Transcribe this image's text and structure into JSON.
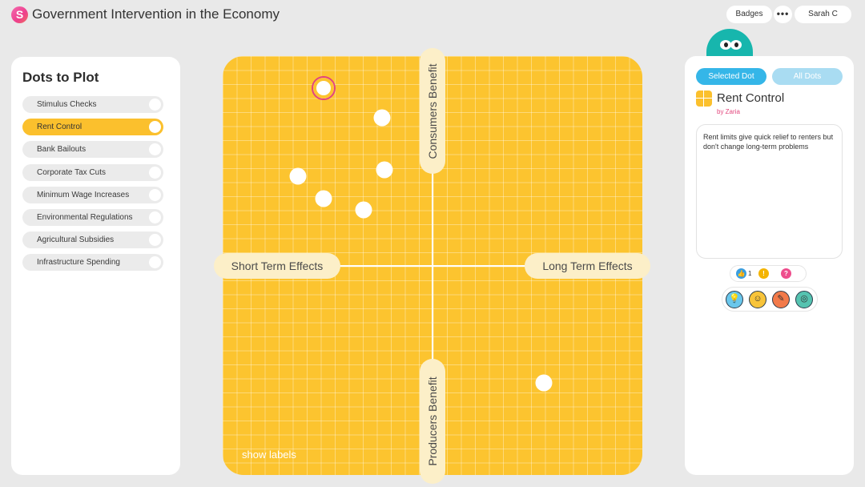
{
  "header": {
    "logo_letter": "S",
    "title": "Government Intervention in the Economy",
    "badges_label": "Badges",
    "more_label": "•••",
    "user_name": "Sarah C"
  },
  "left_panel": {
    "title": "Dots to Plot",
    "items": [
      {
        "label": "Stimulus Checks",
        "active": false
      },
      {
        "label": "Rent Control",
        "active": true
      },
      {
        "label": "Bank Bailouts",
        "active": false
      },
      {
        "label": "Corporate Tax Cuts",
        "active": false
      },
      {
        "label": "Minimum Wage Increases",
        "active": false
      },
      {
        "label": "Environmental Regulations",
        "active": false
      },
      {
        "label": "Agricultural Subsidies",
        "active": false
      },
      {
        "label": "Infrastructure Spending",
        "active": false
      }
    ]
  },
  "plot": {
    "left_label": "Short Term Effects",
    "right_label": "Long Term Effects",
    "top_label": "Consumers Benefit",
    "bottom_label": "Producers Benefit",
    "show_labels": "show labels",
    "dots": [
      {
        "x": -0.52,
        "y": 0.85,
        "selected": true
      },
      {
        "x": -0.24,
        "y": 0.71,
        "selected": false
      },
      {
        "x": -0.64,
        "y": 0.43,
        "selected": false
      },
      {
        "x": -0.23,
        "y": 0.46,
        "selected": false
      },
      {
        "x": -0.52,
        "y": 0.32,
        "selected": false
      },
      {
        "x": -0.33,
        "y": 0.27,
        "selected": false
      },
      {
        "x": 0.53,
        "y": -0.56,
        "selected": false
      }
    ]
  },
  "right_panel": {
    "tab_selected": "Selected Dot",
    "tab_all": "All Dots",
    "dot_title": "Rent Control",
    "dot_author": "by Zaria",
    "description": "Rent limits give quick relief to renters but don't change long-term problems",
    "reactions": {
      "like_icon": "thumbs-up-icon",
      "like_count": "1",
      "idea_icon": "lightbulb-icon",
      "question_icon": "question-icon"
    },
    "badges": [
      "lightbulb-badge-icon",
      "head-badge-icon",
      "certificate-badge-icon",
      "target-badge-icon"
    ]
  },
  "colors": {
    "plot_yellow": "#fcc42f",
    "active_item": "#fbc02d",
    "tab_blue": "#35b6e8",
    "accent_pink": "#e2457c",
    "mascot_teal": "#17b6ad"
  }
}
